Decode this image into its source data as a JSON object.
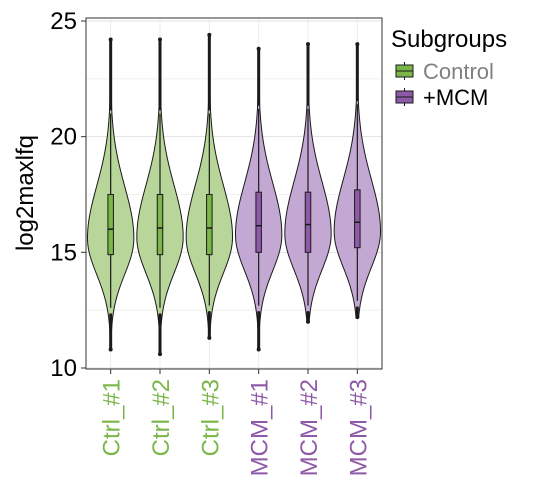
{
  "chart_data": {
    "type": "violin",
    "ylabel": "log2maxlfq",
    "ylim": [
      10,
      25
    ],
    "yticks": [
      10,
      15,
      20,
      25
    ],
    "grid": true,
    "legend": {
      "title": "Subgroups",
      "placement": "right",
      "entries": [
        {
          "label": "Control",
          "fill": "#b8d59a",
          "box_fill": "#7ab648",
          "text_color": "#808080"
        },
        {
          "label": "+MCM",
          "fill": "#c4a8d4",
          "box_fill": "#8e5aa8",
          "text_color": "#000000"
        }
      ]
    },
    "categories": [
      {
        "label": "Ctrl_#1",
        "group": "Control",
        "min": 10.8,
        "max": 24.2,
        "q1": 14.9,
        "median": 16.0,
        "q3": 17.5,
        "whisker_low": 12.6,
        "whisker_high": 21.0,
        "outlier_start": 21.2
      },
      {
        "label": "Ctrl_#2",
        "group": "Control",
        "min": 10.6,
        "max": 24.2,
        "q1": 14.9,
        "median": 16.05,
        "q3": 17.5,
        "whisker_low": 12.6,
        "whisker_high": 21.0,
        "outlier_start": 21.2
      },
      {
        "label": "Ctrl_#3",
        "group": "Control",
        "min": 11.3,
        "max": 24.4,
        "q1": 14.9,
        "median": 16.05,
        "q3": 17.5,
        "whisker_low": 12.7,
        "whisker_high": 21.0,
        "outlier_start": 21.2
      },
      {
        "label": "MCM_#1",
        "group": "+MCM",
        "min": 10.8,
        "max": 23.8,
        "q1": 15.0,
        "median": 16.15,
        "q3": 17.6,
        "whisker_low": 12.7,
        "whisker_high": 21.2,
        "outlier_start": 21.4
      },
      {
        "label": "MCM_#2",
        "group": "+MCM",
        "min": 12.0,
        "max": 24.0,
        "q1": 15.0,
        "median": 16.2,
        "q3": 17.6,
        "whisker_low": 12.7,
        "whisker_high": 21.2,
        "outlier_start": 21.4
      },
      {
        "label": "MCM_#3",
        "group": "+MCM",
        "min": 12.2,
        "max": 24.0,
        "q1": 15.2,
        "median": 16.3,
        "q3": 17.7,
        "whisker_low": 12.9,
        "whisker_high": 21.4,
        "outlier_start": 21.6
      }
    ],
    "tick_label_colors": {
      "Control": "#7ab648",
      "+MCM": "#8e5aa8"
    },
    "outline_color": "#1a1a1a"
  }
}
